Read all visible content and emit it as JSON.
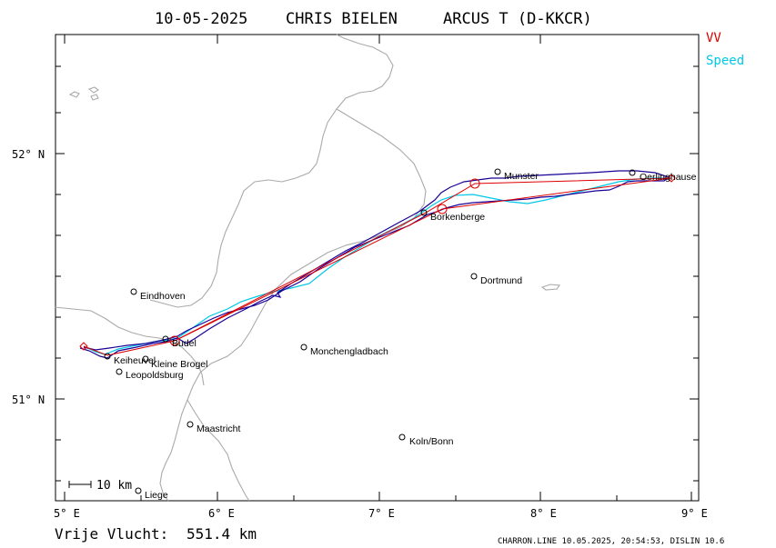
{
  "header": {
    "date": "10-05-2025",
    "pilot": "CHRIS BIELEN",
    "glider": "ARCUS T (D-KKCR)"
  },
  "legend": {
    "vv_label": "VV",
    "speed_label": "Speed",
    "vv_color": "#dd0000",
    "speed_color": "#00c8e6",
    "track_color": "#1a0096",
    "border_color": "#aaaaaa"
  },
  "axes": {
    "lon_labels": [
      "5° E",
      "6° E",
      "7° E",
      "8° E",
      "9° E"
    ],
    "lat_labels": [
      "52° N",
      "51° N"
    ]
  },
  "cities": [
    {
      "id": "eindhoven",
      "name": "Eindhoven"
    },
    {
      "id": "budel",
      "name": "Budel"
    },
    {
      "id": "kleine-brogel",
      "name": "Kleine Brogel"
    },
    {
      "id": "keiheuvel",
      "name": "Keiheuvel"
    },
    {
      "id": "leopoldsburg",
      "name": "Leopoldsburg"
    },
    {
      "id": "maastricht",
      "name": "Maastricht"
    },
    {
      "id": "liege",
      "name": "Liege"
    },
    {
      "id": "monchengladbach",
      "name": "Monchengladbach"
    },
    {
      "id": "koln-bonn",
      "name": "Koln/Bonn"
    },
    {
      "id": "dortmund",
      "name": "Dortmund"
    },
    {
      "id": "borkenberge",
      "name": "Borkenberge"
    },
    {
      "id": "munster",
      "name": "Munster"
    },
    {
      "id": "oerlinghausen",
      "name": "Oerlinghause"
    }
  ],
  "scale_bar": {
    "label": "10 km"
  },
  "distance": {
    "label": "Vrije Vlucht:",
    "value": "551.4 km"
  },
  "footer": {
    "text": "CHARRON.LINE 10.05.2025, 20:54:53, DISLIN 10.6"
  }
}
